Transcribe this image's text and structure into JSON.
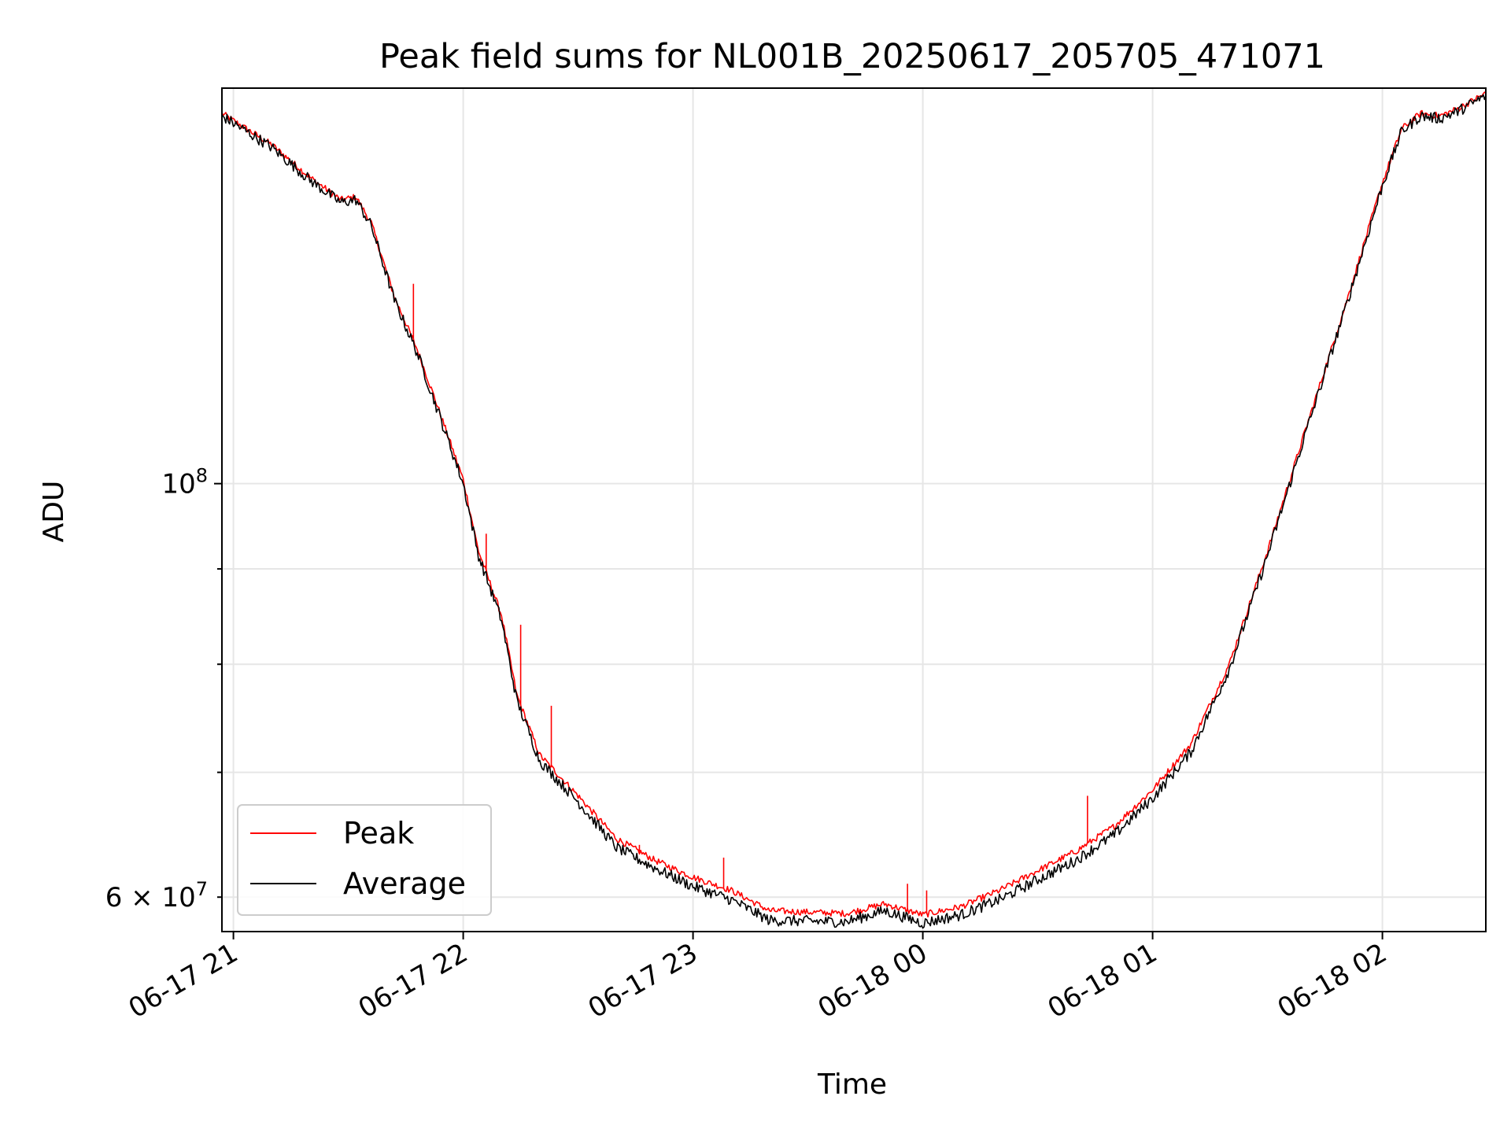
{
  "chart_data": {
    "type": "line",
    "title": "Peak field sums for NL001B_20250617_205705_471071",
    "xlabel": "Time",
    "ylabel": "ADU",
    "yscale": "log",
    "xlim": [
      "2025-06-17 20:57",
      "2025-06-18 02:27"
    ],
    "ylim": [
      57500000,
      163000000
    ],
    "x_ticks": [
      "06-17 21",
      "06-17 22",
      "06-17 23",
      "06-18 00",
      "06-18 01",
      "06-18 02"
    ],
    "y_ticks_major": [
      {
        "value": 100000000,
        "label": "10^8"
      }
    ],
    "y_ticks_minor": [
      {
        "value": 60000000,
        "label": "6 × 10^7"
      },
      {
        "value": 70000000,
        "label": ""
      },
      {
        "value": 80000000,
        "label": ""
      },
      {
        "value": 90000000,
        "label": ""
      }
    ],
    "grid": true,
    "legend_position": "lower-left",
    "series": [
      {
        "name": "Peak",
        "color": "#ff0000",
        "points": [
          [
            "2025-06-17 20:57",
            158000000
          ],
          [
            "2025-06-17 21:10",
            152000000
          ],
          [
            "2025-06-17 21:20",
            146000000
          ],
          [
            "2025-06-17 21:28",
            142000000
          ],
          [
            "2025-06-17 21:32",
            142500000
          ],
          [
            "2025-06-17 21:36",
            138000000
          ],
          [
            "2025-06-17 21:42",
            126000000
          ],
          [
            "2025-06-17 21:48",
            118000000
          ],
          [
            "2025-06-17 21:54",
            109000000
          ],
          [
            "2025-06-17 22:00",
            100500000
          ],
          [
            "2025-06-17 22:04",
            92000000
          ],
          [
            "2025-06-17 22:10",
            85000000
          ],
          [
            "2025-06-17 22:14",
            77000000
          ],
          [
            "2025-06-17 22:20",
            71500000
          ],
          [
            "2025-06-17 22:30",
            68000000
          ],
          [
            "2025-06-17 22:40",
            64500000
          ],
          [
            "2025-06-17 22:50",
            62800000
          ],
          [
            "2025-06-17 23:00",
            61500000
          ],
          [
            "2025-06-17 23:10",
            60500000
          ],
          [
            "2025-06-17 23:20",
            59000000
          ],
          [
            "2025-06-17 23:40",
            58800000
          ],
          [
            "2025-06-17 23:50",
            59500000
          ],
          [
            "2025-06-18 00:00",
            58700000
          ],
          [
            "2025-06-18 00:10",
            59300000
          ],
          [
            "2025-06-18 00:20",
            60500000
          ],
          [
            "2025-06-18 00:30",
            62000000
          ],
          [
            "2025-06-18 00:40",
            63500000
          ],
          [
            "2025-06-18 00:50",
            65500000
          ],
          [
            "2025-06-18 01:00",
            68500000
          ],
          [
            "2025-06-18 01:10",
            72500000
          ],
          [
            "2025-06-18 01:20",
            80000000
          ],
          [
            "2025-06-18 01:30",
            92000000
          ],
          [
            "2025-06-18 01:40",
            107000000
          ],
          [
            "2025-06-18 01:50",
            124000000
          ],
          [
            "2025-06-18 02:00",
            145000000
          ],
          [
            "2025-06-18 02:05",
            155000000
          ],
          [
            "2025-06-18 02:10",
            158000000
          ],
          [
            "2025-06-18 02:15",
            157500000
          ],
          [
            "2025-06-18 02:20",
            159000000
          ],
          [
            "2025-06-18 02:27",
            162000000
          ]
        ],
        "spikes": [
          [
            "2025-06-17 21:47",
            128000000
          ],
          [
            "2025-06-17 22:06",
            94000000
          ],
          [
            "2025-06-17 22:15",
            84000000
          ],
          [
            "2025-06-17 22:23",
            76000000
          ],
          [
            "2025-06-17 22:46",
            64000000
          ],
          [
            "2025-06-17 23:08",
            63000000
          ],
          [
            "2025-06-17 23:56",
            61000000
          ],
          [
            "2025-06-18 00:01",
            60500000
          ],
          [
            "2025-06-18 00:43",
            68000000
          ]
        ]
      },
      {
        "name": "Average",
        "color": "#000000",
        "points": [
          [
            "2025-06-17 20:57",
            157500000
          ],
          [
            "2025-06-17 21:10",
            151500000
          ],
          [
            "2025-06-17 21:20",
            145500000
          ],
          [
            "2025-06-17 21:28",
            141500000
          ],
          [
            "2025-06-17 21:32",
            142000000
          ],
          [
            "2025-06-17 21:36",
            137500000
          ],
          [
            "2025-06-17 21:42",
            125500000
          ],
          [
            "2025-06-17 21:48",
            117500000
          ],
          [
            "2025-06-17 21:54",
            108500000
          ],
          [
            "2025-06-17 22:00",
            100000000
          ],
          [
            "2025-06-17 22:04",
            91500000
          ],
          [
            "2025-06-17 22:10",
            84500000
          ],
          [
            "2025-06-17 22:14",
            76500000
          ],
          [
            "2025-06-17 22:20",
            71000000
          ],
          [
            "2025-06-17 22:30",
            67500000
          ],
          [
            "2025-06-17 22:40",
            63800000
          ],
          [
            "2025-06-17 22:50",
            62200000
          ],
          [
            "2025-06-17 23:00",
            60800000
          ],
          [
            "2025-06-17 23:10",
            59800000
          ],
          [
            "2025-06-17 23:20",
            58300000
          ],
          [
            "2025-06-17 23:40",
            58200000
          ],
          [
            "2025-06-17 23:50",
            59000000
          ],
          [
            "2025-06-18 00:00",
            58100000
          ],
          [
            "2025-06-18 00:10",
            58700000
          ],
          [
            "2025-06-18 00:20",
            59800000
          ],
          [
            "2025-06-18 00:30",
            61300000
          ],
          [
            "2025-06-18 00:40",
            62800000
          ],
          [
            "2025-06-18 00:50",
            64800000
          ],
          [
            "2025-06-18 01:00",
            67800000
          ],
          [
            "2025-06-18 01:10",
            71800000
          ],
          [
            "2025-06-18 01:20",
            79500000
          ],
          [
            "2025-06-18 01:30",
            91500000
          ],
          [
            "2025-06-18 01:40",
            106500000
          ],
          [
            "2025-06-18 01:50",
            123500000
          ],
          [
            "2025-06-18 02:00",
            144500000
          ],
          [
            "2025-06-18 02:05",
            154500000
          ],
          [
            "2025-06-18 02:10",
            157500000
          ],
          [
            "2025-06-18 02:15",
            157000000
          ],
          [
            "2025-06-18 02:20",
            158500000
          ],
          [
            "2025-06-18 02:27",
            161500000
          ]
        ]
      }
    ]
  }
}
